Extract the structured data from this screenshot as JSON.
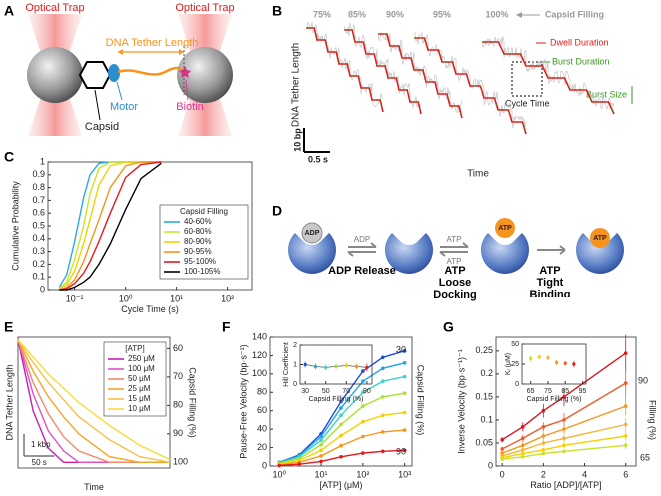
{
  "panel_labels": [
    "A",
    "B",
    "C",
    "D",
    "E",
    "F",
    "G"
  ],
  "panel_a": {
    "trap_left": "Optical Trap",
    "trap_right": "Optical Trap",
    "tether": "DNA Tether Length",
    "motor": "Motor",
    "biotin": "Biotin",
    "capsid": "Capsid"
  },
  "panel_b": {
    "fillings": [
      "75%",
      "85%",
      "90%",
      "95%",
      "100%"
    ],
    "filling_label": "Capsid Filling",
    "dwell": "Dwell Duration",
    "burst_duration": "Burst Duration",
    "burst_size": "Burst Size",
    "cycle_time": "Cycle Time",
    "ylabel": "DNA Tether Length",
    "xlabel": "Time",
    "scale_y": "10 bp",
    "scale_x": "0.5 s"
  },
  "panel_d": {
    "ligands": [
      "ADP",
      "ADP",
      "ATP",
      "ATP",
      "ATP",
      "ATP"
    ],
    "steps": [
      "ADP Release",
      "ATP Loose Docking",
      "ATP Tight Binding"
    ]
  },
  "chart_data": [
    {
      "type": "line",
      "xlabel": "Cycle Time (s)",
      "ylabel": "Cumulative Probability",
      "xlog": true,
      "xlim": [
        0.03,
        300
      ],
      "xticks": [
        {
          "value": 0.1,
          "label": "10⁻¹"
        },
        {
          "value": 1,
          "label": "10⁰"
        },
        {
          "value": 10,
          "label": "10¹"
        },
        {
          "value": 100,
          "label": "10²"
        }
      ],
      "ylim": [
        0,
        1
      ],
      "yticks": [
        0,
        0.1,
        0.2,
        0.3,
        0.4,
        0.5,
        0.6,
        0.7,
        0.8,
        0.9,
        1
      ],
      "legend_title": "Capsid Filling",
      "x": [
        0.05,
        0.07,
        0.1,
        0.15,
        0.2,
        0.3,
        0.5,
        1,
        2,
        5
      ],
      "series": [
        {
          "name": "40-60%",
          "color": "#29abe2",
          "values": [
            0.02,
            0.12,
            0.38,
            0.72,
            0.9,
            0.99,
            1,
            1,
            1,
            1
          ]
        },
        {
          "name": "60-80%",
          "color": "#c9e52a",
          "values": [
            0.01,
            0.06,
            0.24,
            0.5,
            0.75,
            0.95,
            1,
            1,
            1,
            1
          ]
        },
        {
          "name": "80-90%",
          "color": "#f5d000",
          "values": [
            0.01,
            0.04,
            0.15,
            0.36,
            0.55,
            0.82,
            0.97,
            1,
            1,
            1
          ]
        },
        {
          "name": "90-95%",
          "color": "#f7941d",
          "values": [
            0,
            0.02,
            0.08,
            0.22,
            0.36,
            0.55,
            0.8,
            0.97,
            1,
            1
          ]
        },
        {
          "name": "95-100%",
          "color": "#e31a1c",
          "values": [
            0,
            0.01,
            0.05,
            0.13,
            0.22,
            0.38,
            0.6,
            0.88,
            0.98,
            1
          ]
        },
        {
          "name": "100-105%",
          "color": "#000000",
          "values": [
            0,
            0,
            0.02,
            0.06,
            0.1,
            0.2,
            0.36,
            0.63,
            0.87,
            0.99
          ]
        }
      ]
    },
    {
      "type": "line",
      "xlabel": "Time",
      "ylabel": "DNA Tether Length",
      "y2label": "Capsid Filling (%)",
      "xlim": [
        0,
        250
      ],
      "y2lim": [
        56,
        102
      ],
      "y2_inverted": true,
      "y2ticks": [
        60,
        70,
        80,
        90,
        100
      ],
      "legend_title": "[ATP]",
      "scalebar": {
        "x_value": 50,
        "x_label": "50 s",
        "y_label": "1 kbp"
      },
      "x": [
        0,
        25,
        50,
        75,
        100,
        150,
        200,
        250
      ],
      "series": [
        {
          "name": "250 μM",
          "color": "#c71fb5",
          "axis": "y2",
          "values": [
            57,
            82,
            95,
            100,
            100,
            100,
            100,
            100
          ]
        },
        {
          "name": "100 μM",
          "color": "#e24fc8",
          "axis": "y2",
          "values": [
            57,
            76,
            89,
            96,
            100,
            100,
            100,
            100
          ]
        },
        {
          "name": "50 μM",
          "color": "#f08a6a",
          "axis": "y2",
          "values": [
            57,
            72,
            83,
            91,
            96,
            100,
            100,
            100
          ]
        },
        {
          "name": "25 μM",
          "color": "#f5a623",
          "axis": "y2",
          "values": [
            57,
            68,
            77,
            84,
            90,
            98,
            100,
            100
          ]
        },
        {
          "name": "15 μM",
          "color": "#f7c04a",
          "axis": "y2",
          "values": [
            57,
            65,
            72,
            78,
            84,
            92,
            98,
            100
          ]
        },
        {
          "name": "10 μM",
          "color": "#f5dc3a",
          "axis": "y2",
          "values": [
            57,
            63,
            69,
            74,
            79,
            87,
            94,
            99
          ]
        }
      ]
    },
    {
      "type": "line",
      "xlabel": "[ATP] (μM)",
      "ylabel": "Pause-Free Velocity (bp·s⁻¹)",
      "xlog": true,
      "markers": true,
      "xlim": [
        0.6,
        1500
      ],
      "xticks": [
        {
          "value": 1,
          "label": "10⁰"
        },
        {
          "value": 10,
          "label": "10¹"
        },
        {
          "value": 100,
          "label": "10²"
        },
        {
          "value": 1000,
          "label": "10³"
        }
      ],
      "ylim": [
        0,
        140
      ],
      "yticks": [
        0,
        20,
        40,
        60,
        80,
        100,
        120,
        140
      ],
      "annotations": [
        "30",
        "90",
        "Capsid Filling (%)"
      ],
      "x": [
        1,
        3,
        10,
        30,
        100,
        300,
        1000
      ],
      "series": [
        {
          "color": "#1f4fd8",
          "values": [
            4,
            12,
            35,
            70,
            103,
            118,
            125
          ]
        },
        {
          "color": "#1fa5e6",
          "values": [
            4,
            11,
            32,
            63,
            92,
            106,
            112
          ]
        },
        {
          "color": "#3fd1c7",
          "values": [
            3,
            10,
            28,
            55,
            80,
            92,
            97
          ]
        },
        {
          "color": "#a6e22e",
          "values": [
            3,
            8,
            23,
            45,
            65,
            75,
            79
          ]
        },
        {
          "color": "#f5d000",
          "values": [
            2,
            6,
            17,
            33,
            48,
            55,
            58
          ]
        },
        {
          "color": "#f7941d",
          "values": [
            1,
            4,
            11,
            22,
            32,
            37,
            39
          ]
        },
        {
          "color": "#e31a1c",
          "values": [
            0.5,
            2,
            5,
            10,
            14,
            16,
            17
          ]
        }
      ],
      "inset": {
        "type": "line",
        "xlabel": "Capsid Filling (%)",
        "ylabel": "Hill Coefficient",
        "markers": true,
        "xlim": [
          25,
          95
        ],
        "xticks": [
          30,
          50,
          70,
          90
        ],
        "ylim": [
          0,
          2
        ],
        "yticks": [
          0,
          1,
          2
        ],
        "x": [
          30,
          40,
          50,
          60,
          70,
          80,
          90
        ],
        "series": [
          {
            "color": "#555555",
            "point_colors": [
              "#1f4fd8",
              "#1fa5e6",
              "#3fd1c7",
              "#a6e22e",
              "#f5d000",
              "#f7941d",
              "#e31a1c"
            ],
            "values": [
              1.0,
              0.9,
              0.85,
              0.9,
              0.95,
              0.9,
              0.85
            ],
            "errors": [
              0.15,
              0.15,
              0.15,
              0.15,
              0.15,
              0.15,
              0.2
            ]
          }
        ]
      }
    },
    {
      "type": "line",
      "xlabel": "Ratio [ADP]/[ATP]",
      "ylabel": "Inverse Velocity (bp·s⁻¹)⁻¹",
      "markers": true,
      "xlim": [
        -0.3,
        6.5
      ],
      "xticks": [
        0,
        2,
        4,
        6
      ],
      "ylim": [
        0,
        0.28
      ],
      "yticks": [
        0,
        0.05,
        0.1,
        0.15,
        0.2,
        0.25
      ],
      "annotations": [
        "90",
        "Filling (%)",
        "65"
      ],
      "x": [
        0,
        1,
        2,
        3,
        6
      ],
      "series": [
        {
          "color": "#d7191c",
          "values": [
            0.057,
            0.085,
            0.12,
            0.15,
            0.245
          ],
          "errors": [
            0.006,
            0.01,
            0.015,
            0.02,
            0.04
          ]
        },
        {
          "color": "#f05a28",
          "values": [
            0.037,
            0.06,
            0.085,
            0.1,
            0.18
          ],
          "errors": [
            0.005,
            0.008,
            0.01,
            0.015,
            0.03
          ]
        },
        {
          "color": "#f7941d",
          "values": [
            0.028,
            0.045,
            0.065,
            0.08,
            0.13
          ],
          "errors": [
            0.004,
            0.006,
            0.008,
            0.01,
            0.02
          ]
        },
        {
          "color": "#f9b233",
          "values": [
            0.022,
            0.035,
            0.05,
            0.06,
            0.09
          ],
          "errors": [
            0.003,
            0.005,
            0.006,
            0.008,
            0.015
          ]
        },
        {
          "color": "#f5d000",
          "values": [
            0.018,
            0.027,
            0.035,
            0.045,
            0.065
          ],
          "errors": [
            0.003,
            0.004,
            0.005,
            0.006,
            0.01
          ]
        },
        {
          "color": "#c8e02a",
          "values": [
            0.015,
            0.02,
            0.027,
            0.032,
            0.045
          ],
          "errors": [
            0.002,
            0.003,
            0.004,
            0.005,
            0.008
          ]
        }
      ],
      "inset": {
        "type": "line",
        "xlabel": "Capsid Filling (%)",
        "ylabel": "Kᵢ (μM)",
        "markers": true,
        "xlim": [
          60,
          97
        ],
        "xticks": [
          65,
          75,
          85,
          95
        ],
        "ylim": [
          0,
          50
        ],
        "yticks": [
          0,
          25,
          50
        ],
        "x": [
          65,
          70,
          75,
          80,
          85,
          90
        ],
        "series": [
          {
            "color": "none",
            "point_colors": [
              "#c8e02a",
              "#f5d000",
              "#f9b233",
              "#f7941d",
              "#f05a28",
              "#d7191c"
            ],
            "values": [
              32,
              34,
              33,
              27,
              26,
              25
            ],
            "errors": [
              4,
              3,
              3,
              3,
              3,
              4
            ]
          }
        ]
      }
    }
  ]
}
